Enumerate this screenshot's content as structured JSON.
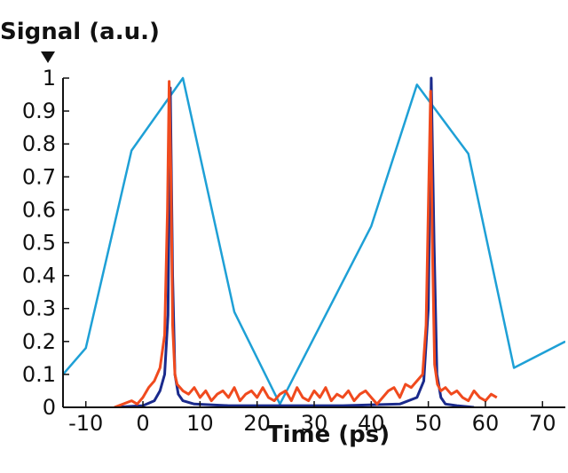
{
  "chart_data": {
    "type": "line",
    "ylabel": "Signal (a.u.)",
    "xlabel": "Time (ps)",
    "xlim": [
      -14,
      74
    ],
    "ylim": [
      0,
      1
    ],
    "xticks": [
      -10,
      0,
      10,
      20,
      30,
      40,
      50,
      60,
      70
    ],
    "xtick_labels": [
      "-10",
      "0",
      "10",
      "20",
      "30",
      "40",
      "50",
      "60",
      "70"
    ],
    "yticks": [
      0,
      0.1,
      0.2,
      0.3,
      0.4,
      0.5,
      0.6,
      0.7,
      0.8,
      0.9,
      1
    ],
    "ytick_labels": [
      "0",
      "0.1",
      "0.2",
      "0.3",
      "0.4",
      "0.5",
      "0.6",
      "0.7",
      "0.8",
      "0.9",
      "1"
    ],
    "grid": false,
    "series": [
      {
        "color": "#1ea0d6",
        "x": [
          -14,
          -10,
          -2,
          7,
          16,
          24,
          40,
          48,
          57,
          65,
          74
        ],
        "y": [
          0.1,
          0.18,
          0.78,
          1.0,
          0.29,
          0.01,
          0.55,
          0.98,
          0.77,
          0.12,
          0.2
        ]
      },
      {
        "color": "#1a2a8c",
        "x": [
          -5,
          0,
          2,
          3,
          3.8,
          4.4,
          4.8,
          5.2,
          5.6,
          6.2,
          7,
          9,
          15,
          25,
          35,
          45,
          48,
          49.2,
          50,
          50.5,
          51,
          51.5,
          52.2,
          53,
          55,
          58
        ],
        "y": [
          0,
          0.005,
          0.02,
          0.05,
          0.1,
          0.28,
          0.97,
          0.4,
          0.1,
          0.04,
          0.02,
          0.01,
          0.005,
          0.005,
          0.005,
          0.01,
          0.03,
          0.08,
          0.3,
          1.0,
          0.5,
          0.1,
          0.03,
          0.01,
          0.005,
          0
        ]
      },
      {
        "color": "#f04a1e",
        "x": [
          -5,
          -2,
          -1,
          0,
          1,
          2,
          3,
          3.8,
          4.3,
          4.6,
          4.9,
          5.2,
          5.6,
          6,
          7,
          8,
          9,
          10,
          11,
          12,
          13,
          14,
          15,
          16,
          17,
          18,
          19,
          20,
          21,
          22,
          23,
          24,
          25,
          26,
          27,
          28,
          29,
          30,
          31,
          32,
          33,
          34,
          35,
          36,
          37,
          38,
          39,
          40,
          41,
          42,
          43,
          44,
          45,
          46,
          47,
          48,
          49,
          49.6,
          50.1,
          50.4,
          50.7,
          51.1,
          51.6,
          52.2,
          53,
          54,
          55,
          56,
          57,
          58,
          59,
          60,
          61,
          62
        ],
        "y": [
          0,
          0.02,
          0.01,
          0.03,
          0.06,
          0.08,
          0.12,
          0.22,
          0.6,
          0.99,
          0.7,
          0.25,
          0.1,
          0.07,
          0.05,
          0.04,
          0.06,
          0.03,
          0.05,
          0.02,
          0.04,
          0.05,
          0.03,
          0.06,
          0.02,
          0.04,
          0.05,
          0.03,
          0.06,
          0.03,
          0.02,
          0.04,
          0.05,
          0.02,
          0.06,
          0.03,
          0.02,
          0.05,
          0.03,
          0.06,
          0.02,
          0.04,
          0.03,
          0.05,
          0.02,
          0.04,
          0.05,
          0.03,
          0.01,
          0.03,
          0.05,
          0.06,
          0.03,
          0.07,
          0.06,
          0.08,
          0.1,
          0.25,
          0.7,
          0.96,
          0.5,
          0.13,
          0.07,
          0.05,
          0.06,
          0.04,
          0.05,
          0.03,
          0.02,
          0.05,
          0.03,
          0.02,
          0.04,
          0.03
        ]
      }
    ]
  }
}
